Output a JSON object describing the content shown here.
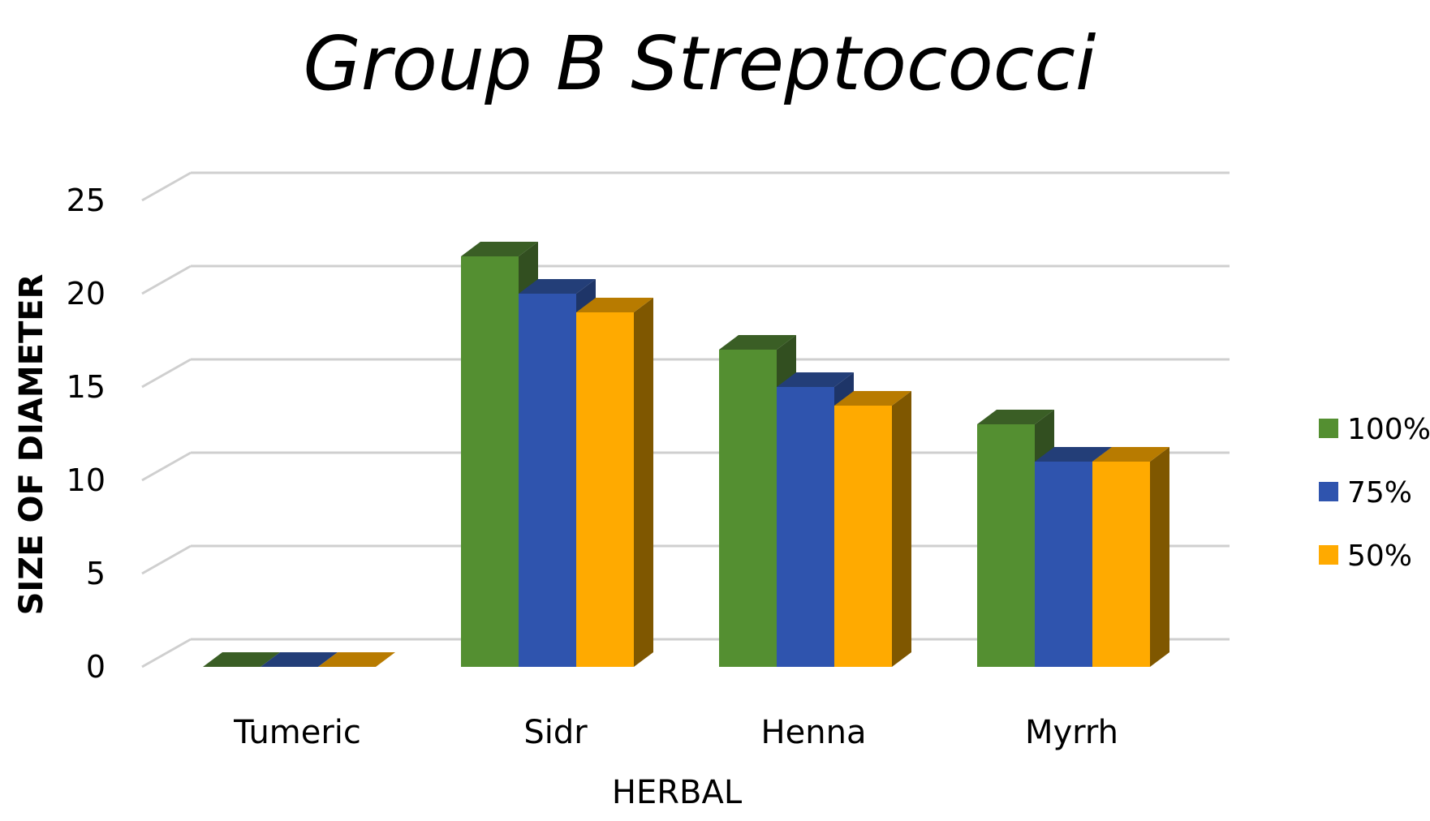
{
  "chart_data": {
    "type": "bar",
    "title": "Group B Streptococci",
    "xlabel": "HERBAL",
    "ylabel": "SIZE OF DIAMETER",
    "categories": [
      "Tumeric",
      "Sidr",
      "Henna",
      "Myrrh"
    ],
    "series": [
      {
        "name": "100%",
        "values": [
          0,
          22,
          17,
          13
        ],
        "color": "#548F31",
        "top_color": "#3A5E25",
        "side_color": "#324F20"
      },
      {
        "name": "75%",
        "values": [
          0,
          20,
          15,
          11
        ],
        "color": "#2F54AE",
        "top_color": "#233E78",
        "side_color": "#1E3568"
      },
      {
        "name": "50%",
        "values": [
          0,
          19,
          14,
          11
        ],
        "color": "#FFAA00",
        "top_color": "#B87B00",
        "side_color": "#7F5700"
      }
    ],
    "ylim": [
      0,
      25
    ],
    "yticks": [
      "0",
      "5",
      "10",
      "15",
      "20",
      "25"
    ],
    "grid": true,
    "legend_position": "right",
    "style": "3d-clustered-column"
  }
}
